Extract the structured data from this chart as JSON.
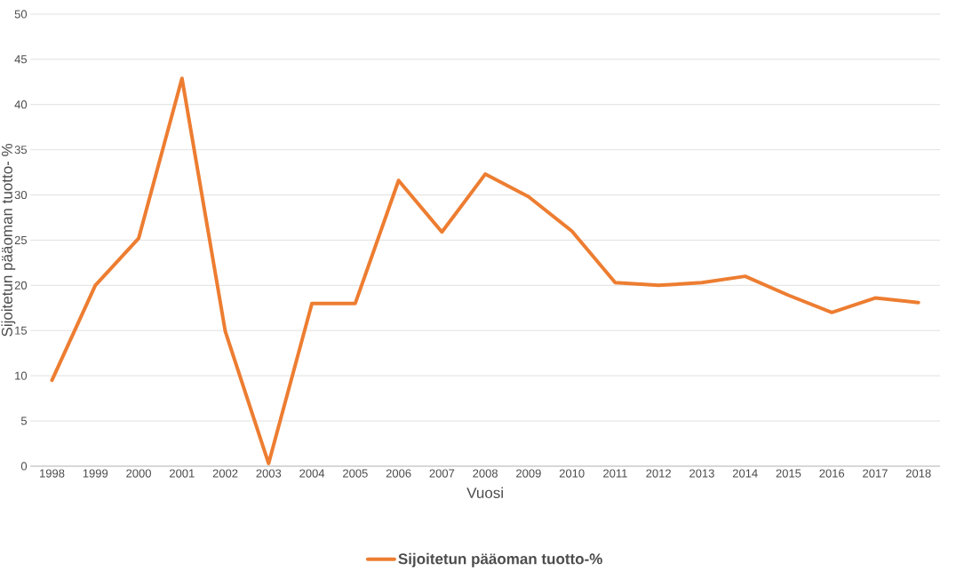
{
  "chart_data": {
    "type": "line",
    "xlabel": "Vuosi",
    "ylabel": "Sijoitetun pääoman tuotto- %",
    "categories": [
      "1998",
      "1999",
      "2000",
      "2001",
      "2002",
      "2003",
      "2004",
      "2005",
      "2006",
      "2007",
      "2008",
      "2009",
      "2010",
      "2011",
      "2012",
      "2013",
      "2014",
      "2015",
      "2016",
      "2017",
      "2018"
    ],
    "series": [
      {
        "name": "Sijoitetun pääoman tuotto-%",
        "color": "#ed7d31",
        "values": [
          9.5,
          20.0,
          25.2,
          42.9,
          14.9,
          0.3,
          18.0,
          18.0,
          31.6,
          25.9,
          32.3,
          29.8,
          26.0,
          20.3,
          20.0,
          20.3,
          21.0,
          18.9,
          17.0,
          18.6,
          18.1
        ]
      }
    ],
    "ylim": [
      0,
      50
    ],
    "yticks": [
      0,
      5,
      10,
      15,
      20,
      25,
      30,
      35,
      40,
      45,
      50
    ],
    "grid": "y",
    "legend": "bottom"
  }
}
